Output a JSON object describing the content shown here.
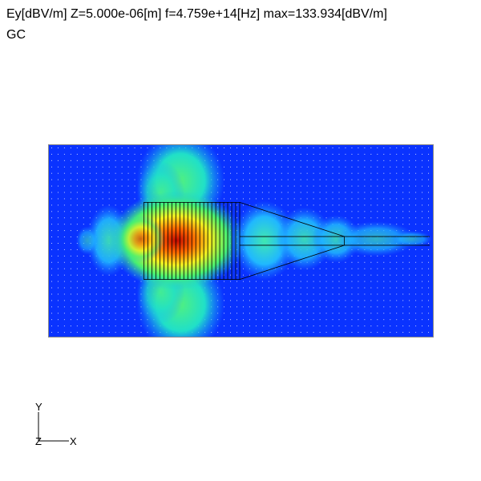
{
  "header": {
    "line1": "Ey[dBV/m] Z=5.000e-06[m] f=4.759e+14[Hz] max=133.934[dBV/m]",
    "line2": "GC"
  },
  "colors": {
    "background_field": "#0a33ff",
    "low": "#20b0ff",
    "mid": "#1ce6c0",
    "green": "#3cf070",
    "yellow": "#f0f020",
    "orange": "#ff8a00",
    "max": "#d01000",
    "outline": "#000000",
    "grid_dots": "#c8d0ff"
  },
  "axes": {
    "y_label": "Y",
    "x_label": "X",
    "z_label": "Z"
  }
}
